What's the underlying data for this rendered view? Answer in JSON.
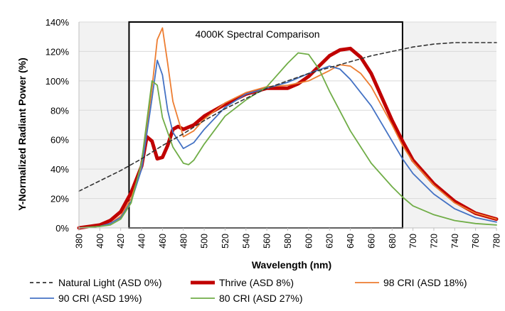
{
  "chart_data": {
    "type": "line",
    "title": "4000K Spectral Comparison",
    "xlabel": "Wavelength (nm)",
    "ylabel": "Y-Normalized Radiant Power (%)",
    "xlim": [
      380,
      780
    ],
    "ylim": [
      0,
      140
    ],
    "grid": true,
    "legend_position": "bottom",
    "x_ticks": [
      380,
      400,
      420,
      440,
      460,
      480,
      500,
      520,
      540,
      560,
      580,
      600,
      620,
      640,
      660,
      680,
      700,
      720,
      740,
      760,
      780
    ],
    "y_ticks": [
      "0%",
      "20%",
      "40%",
      "60%",
      "80%",
      "100%",
      "120%",
      "140%"
    ],
    "y_tick_values": [
      0,
      20,
      40,
      60,
      80,
      100,
      120,
      140
    ],
    "highlight_band": [
      428,
      690
    ],
    "series": [
      {
        "name": "Natural Light (ASD 0%)",
        "color": "#333333",
        "style": "dashed",
        "x": [
          380,
          400,
          420,
          440,
          460,
          480,
          500,
          520,
          540,
          560,
          580,
          600,
          620,
          640,
          660,
          680,
          700,
          720,
          740,
          760,
          780
        ],
        "y": [
          25,
          32,
          39,
          47,
          56,
          64,
          73,
          81,
          88,
          95,
          100,
          105,
          109,
          113,
          117,
          120,
          123,
          125,
          126,
          126,
          126
        ]
      },
      {
        "name": "Thrive (ASD 8%)",
        "color": "#c00000",
        "style": "solid",
        "x": [
          380,
          400,
          410,
          420,
          430,
          440,
          445,
          450,
          455,
          460,
          465,
          470,
          475,
          480,
          490,
          500,
          520,
          540,
          560,
          580,
          590,
          600,
          610,
          620,
          630,
          640,
          650,
          660,
          670,
          680,
          690,
          700,
          720,
          740,
          760,
          780
        ],
        "y": [
          0,
          2,
          5,
          11,
          24,
          42,
          62,
          59,
          47,
          48,
          56,
          67,
          69,
          67,
          70,
          76,
          84,
          91,
          95,
          95,
          98,
          103,
          110,
          117,
          121,
          122,
          116,
          105,
          89,
          73,
          59,
          46,
          30,
          18,
          10,
          6
        ]
      },
      {
        "name": "98 CRI (ASD 18%)",
        "color": "#ed7d31",
        "style": "solid",
        "x": [
          380,
          400,
          410,
          420,
          430,
          440,
          450,
          455,
          460,
          465,
          470,
          480,
          490,
          500,
          520,
          540,
          560,
          580,
          600,
          620,
          630,
          640,
          650,
          660,
          680,
          690,
          700,
          720,
          740,
          760,
          780
        ],
        "y": [
          0,
          1,
          3,
          8,
          20,
          42,
          95,
          128,
          136,
          112,
          86,
          62,
          66,
          74,
          85,
          92,
          96,
          97,
          100,
          107,
          111,
          110,
          105,
          96,
          70,
          56,
          45,
          29,
          17,
          10,
          6
        ]
      },
      {
        "name": "90 CRI (ASD 19%)",
        "color": "#4472c4",
        "style": "solid",
        "x": [
          380,
          400,
          410,
          420,
          430,
          440,
          450,
          455,
          460,
          465,
          470,
          480,
          490,
          500,
          520,
          540,
          560,
          580,
          600,
          620,
          630,
          640,
          650,
          660,
          680,
          690,
          700,
          720,
          740,
          760,
          780
        ],
        "y": [
          0,
          1,
          3,
          7,
          18,
          40,
          88,
          114,
          104,
          80,
          65,
          54,
          58,
          67,
          82,
          91,
          95,
          99,
          105,
          110,
          108,
          101,
          92,
          83,
          59,
          47,
          37,
          23,
          13,
          7,
          4
        ]
      },
      {
        "name": "80 CRI (ASD 27%)",
        "color": "#70ad47",
        "style": "solid",
        "x": [
          380,
          400,
          410,
          420,
          430,
          440,
          450,
          455,
          460,
          470,
          480,
          485,
          490,
          500,
          520,
          540,
          560,
          580,
          590,
          600,
          610,
          620,
          640,
          660,
          680,
          690,
          700,
          720,
          740,
          760,
          780
        ],
        "y": [
          0,
          1,
          2,
          6,
          17,
          45,
          100,
          97,
          75,
          55,
          44,
          43,
          46,
          57,
          76,
          87,
          96,
          112,
          119,
          118,
          108,
          93,
          66,
          44,
          28,
          21,
          15,
          9,
          5,
          3,
          2
        ]
      }
    ]
  }
}
